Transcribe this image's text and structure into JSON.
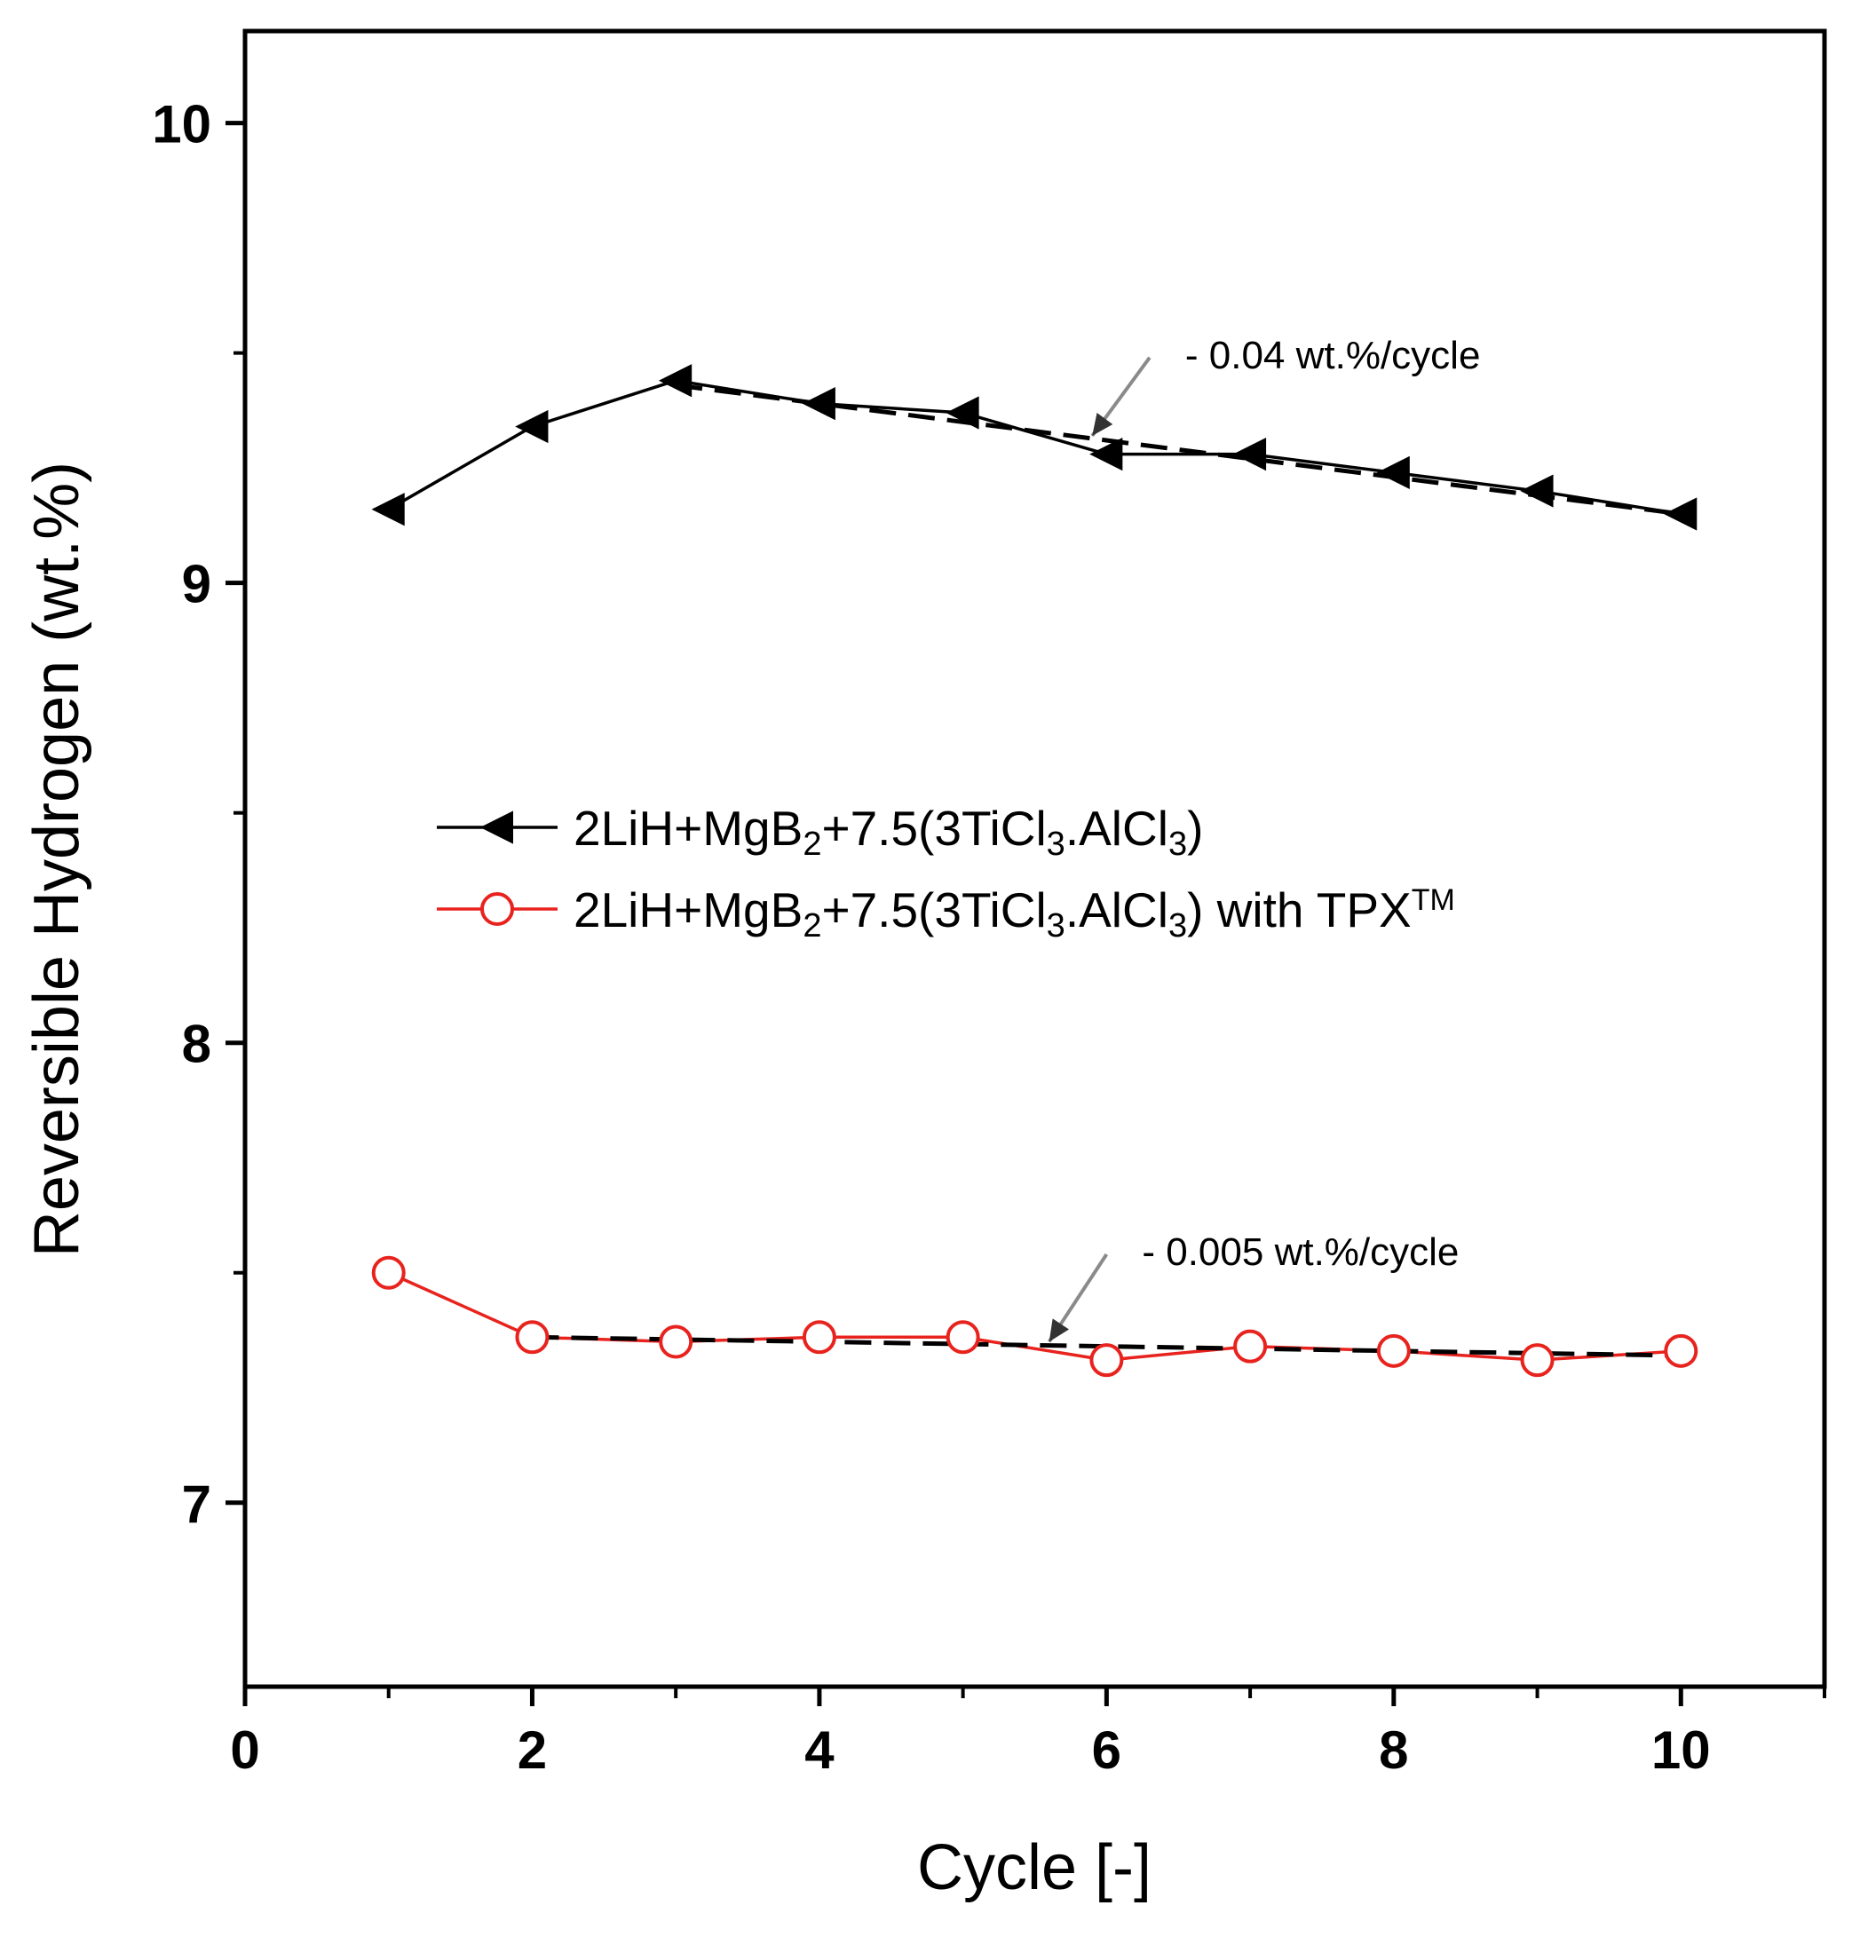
{
  "chart_data": {
    "type": "line",
    "title": "",
    "xlabel": "Cycle [-]",
    "ylabel": "Reversible Hydrogen (wt.%)",
    "xlim": [
      0,
      11
    ],
    "ylim": [
      6.6,
      10.2
    ],
    "x_ticks": [
      0,
      2,
      4,
      6,
      8,
      10
    ],
    "y_ticks": [
      7,
      8,
      9,
      10
    ],
    "x_tick_labels": [
      "0",
      "2",
      "4",
      "6",
      "8",
      "10"
    ],
    "y_tick_labels": [
      "7",
      "8",
      "9",
      "10"
    ],
    "grid": false,
    "legend_position": "center-left",
    "series": [
      {
        "name": "2LiH+MgB2+7.5(3TiCl3.AlCl3)",
        "legend_parts": [
          {
            "t": "2LiH+MgB"
          },
          {
            "t": "2",
            "sub": true
          },
          {
            "t": "+7.5(3TiCl"
          },
          {
            "t": "3",
            "sub": true
          },
          {
            "t": ".AlCl"
          },
          {
            "t": "3",
            "sub": true
          },
          {
            "t": ")"
          }
        ],
        "color": "#000000",
        "marker": "left-triangle",
        "x": [
          1,
          2,
          3,
          4,
          5,
          6,
          7,
          8,
          9,
          10
        ],
        "values": [
          9.16,
          9.34,
          9.44,
          9.39,
          9.37,
          9.28,
          9.28,
          9.24,
          9.2,
          9.15
        ]
      },
      {
        "name": "2LiH+MgB2+7.5(3TiCl3.AlCl3) with TPX TM",
        "legend_parts": [
          {
            "t": "2LiH+MgB"
          },
          {
            "t": "2",
            "sub": true
          },
          {
            "t": "+7.5(3TiCl"
          },
          {
            "t": "3",
            "sub": true
          },
          {
            "t": ".AlCl"
          },
          {
            "t": "3",
            "sub": true
          },
          {
            "t": ") with TPX"
          },
          {
            "t": "TM",
            "sup": true
          }
        ],
        "color": "#e8231e",
        "marker": "open-circle",
        "x": [
          1,
          2,
          3,
          4,
          5,
          6,
          7,
          8,
          9,
          10
        ],
        "values": [
          7.5,
          7.36,
          7.35,
          7.36,
          7.36,
          7.31,
          7.34,
          7.33,
          7.31,
          7.33
        ]
      }
    ],
    "fit_lines": [
      {
        "x": [
          3,
          10
        ],
        "values": [
          9.43,
          9.15
        ],
        "style": "dashed",
        "color": "#000000"
      },
      {
        "x": [
          2,
          10
        ],
        "values": [
          7.36,
          7.32
        ],
        "style": "dashed",
        "color": "#000000"
      }
    ],
    "annotations": [
      {
        "text": "- 0.04 wt.%/cycle",
        "target_x": 5.9,
        "target_y": 9.32,
        "arrow_from_x": 6.3,
        "arrow_from_y": 9.49
      },
      {
        "text": "- 0.005 wt.%/cycle",
        "target_x": 5.6,
        "target_y": 7.35,
        "arrow_from_x": 6.0,
        "arrow_from_y": 7.54
      }
    ]
  }
}
